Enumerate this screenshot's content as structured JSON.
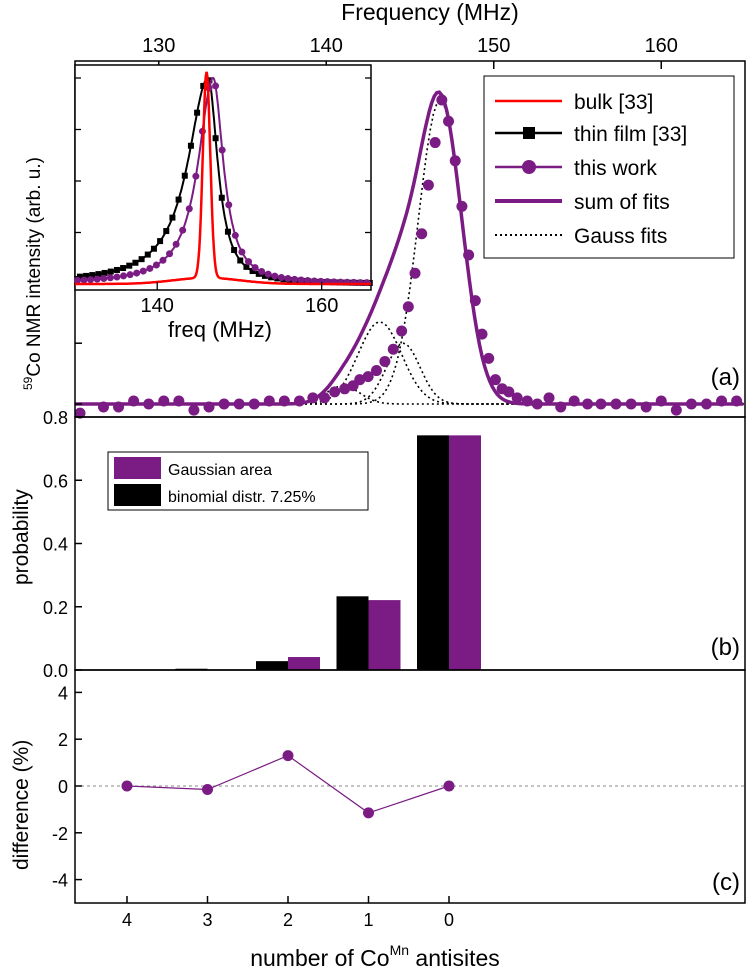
{
  "colors": {
    "purple": "#7b1c84",
    "red": "#ff0000",
    "black": "#000000",
    "gray": "#888888"
  },
  "chart_data": [
    {
      "panel": "(a)",
      "type": "line",
      "panel_label": "(a)",
      "top_axis_label": "Frequency (MHz)",
      "ylabel_sup": "59",
      "ylabel": "Co NMR intensity (arb. u.)",
      "xlim": [
        125,
        165
      ],
      "xticks": [
        130,
        140,
        150,
        160
      ],
      "legend": [
        "bulk [33]",
        "thin film [33]",
        "this work",
        "sum of fits",
        "Gauss fits"
      ],
      "gauss_fits": [
        {
          "center": 146.8,
          "amplitude": 1.0,
          "sigma": 1.3
        },
        {
          "center": 144.6,
          "amplitude": 0.2,
          "sigma": 1.0
        },
        {
          "center": 143.2,
          "amplitude": 0.27,
          "sigma": 1.3
        },
        {
          "center": 141.0,
          "amplitude": 0.06,
          "sigma": 1.0
        }
      ],
      "this_work_points": [
        [
          125.3,
          -0.03
        ],
        [
          126.7,
          -0.01
        ],
        [
          127.6,
          -0.01
        ],
        [
          128.5,
          0.01
        ],
        [
          129.4,
          0
        ],
        [
          130.3,
          0.01
        ],
        [
          131.2,
          0.01
        ],
        [
          132.1,
          -0.02
        ],
        [
          133,
          -0.01
        ],
        [
          133.9,
          0
        ],
        [
          134.8,
          0
        ],
        [
          135.7,
          0
        ],
        [
          136.6,
          0.01
        ],
        [
          137.5,
          0.01
        ],
        [
          138.4,
          0.01
        ],
        [
          139.2,
          0.02
        ],
        [
          139.9,
          0.02
        ],
        [
          140.5,
          0.04
        ],
        [
          141.1,
          0.05
        ],
        [
          141.6,
          0.06
        ],
        [
          142.0,
          0.08
        ],
        [
          142.5,
          0.09
        ],
        [
          143.0,
          0.11
        ],
        [
          143.5,
          0.14
        ],
        [
          144.0,
          0.18
        ],
        [
          144.5,
          0.24
        ],
        [
          144.9,
          0.32
        ],
        [
          145.3,
          0.43
        ],
        [
          145.7,
          0.56
        ],
        [
          146.1,
          0.72
        ],
        [
          146.5,
          0.86
        ],
        [
          146.9,
          1.0
        ],
        [
          147.3,
          0.93
        ],
        [
          147.7,
          0.8
        ],
        [
          148.1,
          0.65
        ],
        [
          148.5,
          0.49
        ],
        [
          148.9,
          0.34
        ],
        [
          149.3,
          0.23
        ],
        [
          149.7,
          0.15
        ],
        [
          150.1,
          0.08
        ],
        [
          150.5,
          0.05
        ],
        [
          150.9,
          0.04
        ],
        [
          151.4,
          0.02
        ],
        [
          152.0,
          0.01
        ],
        [
          152.6,
          0
        ],
        [
          153.3,
          0.02
        ],
        [
          154.0,
          -0.01
        ],
        [
          154.8,
          0.01
        ],
        [
          155.6,
          0
        ],
        [
          156.4,
          0
        ],
        [
          157.3,
          0
        ],
        [
          158.2,
          0
        ],
        [
          159.1,
          -0.01
        ],
        [
          160.0,
          0.01
        ],
        [
          160.9,
          -0.02
        ],
        [
          161.8,
          0
        ],
        [
          162.7,
          0
        ],
        [
          163.6,
          0.01
        ],
        [
          164.5,
          0.01
        ]
      ],
      "inset": {
        "type": "line",
        "xlabel": "freq (MHz)",
        "xlim": [
          130,
          166
        ],
        "xticks": [
          140,
          160
        ],
        "series": [
          {
            "name": "bulk [33]",
            "center": 146.0,
            "sigma": 0.45,
            "tail_amp": 0.03,
            "tail_sigma": 4
          },
          {
            "name": "thin film [33]",
            "center": 146.2,
            "sigma_left": 3.0,
            "sigma_right": 1.4
          },
          {
            "name": "this work",
            "center": 146.8,
            "sigma_left": 2.2,
            "sigma_right": 1.5
          }
        ]
      }
    },
    {
      "panel": "(b)",
      "type": "bar",
      "panel_label": "(b)",
      "ylabel": "probability",
      "ylim": [
        0,
        0.8
      ],
      "yticks": [
        0.0,
        0.2,
        0.4,
        0.6,
        0.8
      ],
      "categories": [
        "4",
        "3",
        "2",
        "1",
        "0"
      ],
      "series": [
        {
          "name": "binomial distr. 7.25%",
          "values": [
            0.0002,
            0.004,
            0.028,
            0.233,
            0.742
          ]
        },
        {
          "name": "Gaussian area",
          "values": [
            0.0,
            0.0,
            0.041,
            0.221,
            0.742
          ]
        }
      ]
    },
    {
      "panel": "(c)",
      "type": "line",
      "panel_label": "(c)",
      "ylabel": "difference (%)",
      "ylim": [
        -5,
        5
      ],
      "yticks": [
        -4,
        -2,
        0,
        2,
        4
      ],
      "xlabel_main": "number of Co",
      "xlabel_sup": "Mn",
      "xlabel_rest": " antisites",
      "categories": [
        "4",
        "3",
        "2",
        "1",
        "0"
      ],
      "values": [
        0.0,
        -0.15,
        1.3,
        -1.15,
        0.0
      ]
    }
  ]
}
